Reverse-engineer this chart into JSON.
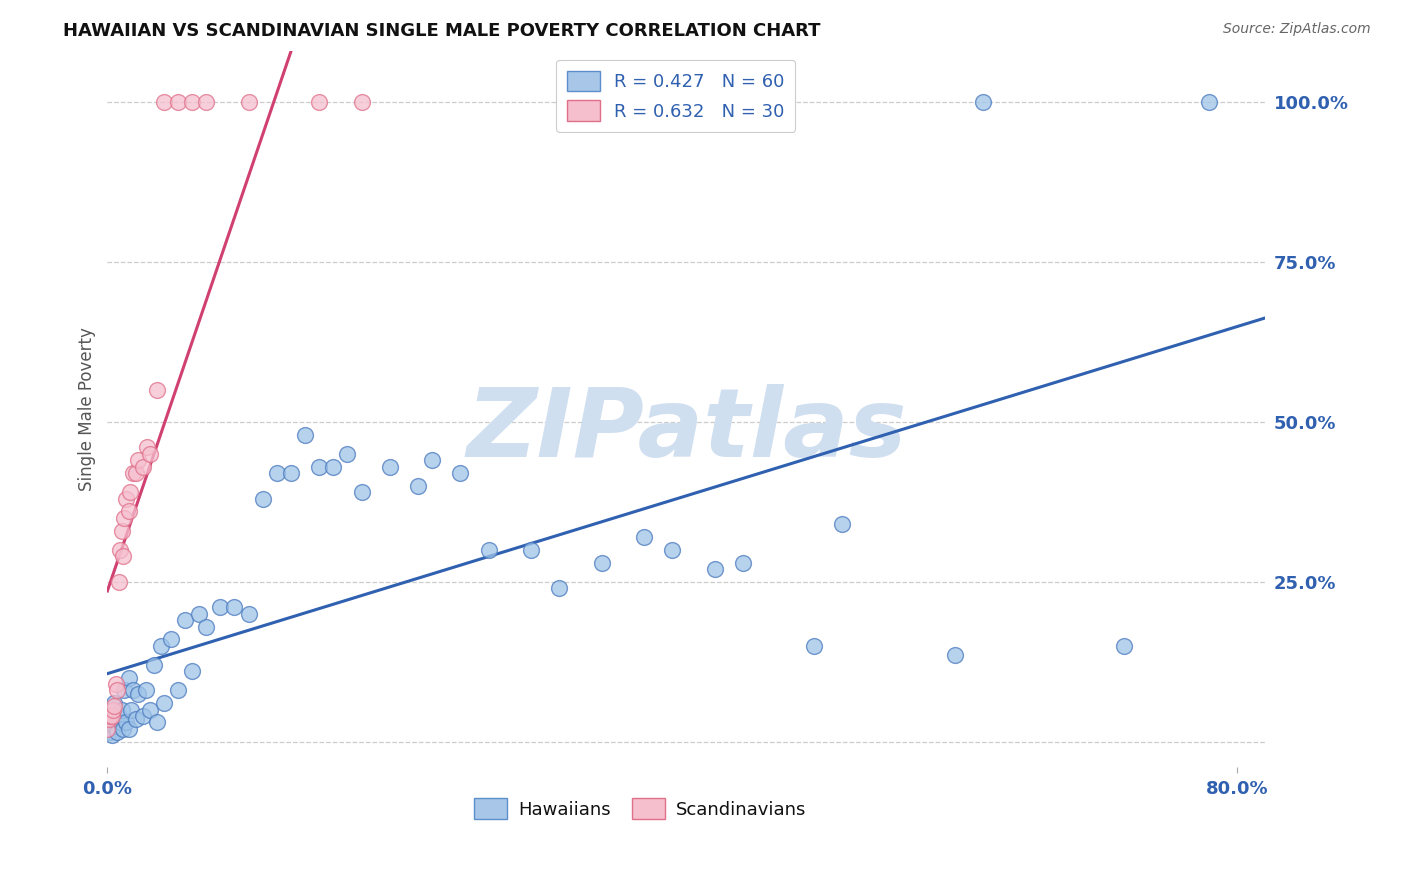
{
  "title": "HAWAIIAN VS SCANDINAVIAN SINGLE MALE POVERTY CORRELATION CHART",
  "source": "Source: ZipAtlas.com",
  "ylabel": "Single Male Poverty",
  "y_tick_right": [
    0.0,
    0.25,
    0.5,
    0.75,
    1.0
  ],
  "y_tick_labels_right": [
    "",
    "25.0%",
    "50.0%",
    "75.0%",
    "100.0%"
  ],
  "x_tick_vals": [
    0.0,
    0.8
  ],
  "x_tick_labels": [
    "0.0%",
    "80.0%"
  ],
  "legend_r_entries": [
    {
      "label": "R = 0.427   N = 60",
      "facecolor": "#a8c6e8",
      "edgecolor": "#5b8fcc"
    },
    {
      "label": "R = 0.632   N = 30",
      "facecolor": "#f5bfce",
      "edgecolor": "#e0708a"
    }
  ],
  "bottom_legend": [
    "Hawaiians",
    "Scandinavians"
  ],
  "blue_dot_face": "#9fc4e8",
  "blue_dot_edge": "#4a7abf",
  "pink_dot_face": "#f5bfce",
  "pink_dot_edge": "#e0708a",
  "blue_line_color": "#3060b0",
  "pink_line_color": "#d04070",
  "watermark_text": "ZIPatlas",
  "watermark_color": "#d0dff0",
  "background_color": "#ffffff",
  "grid_color": "#cccccc",
  "xlim": [
    0.0,
    0.82
  ],
  "ylim": [
    -0.04,
    1.08
  ],
  "hawaiians_x": [
    0.0,
    0.002,
    0.003,
    0.005,
    0.005,
    0.007,
    0.008,
    0.009,
    0.01,
    0.011,
    0.012,
    0.013,
    0.015,
    0.015,
    0.017,
    0.018,
    0.02,
    0.022,
    0.025,
    0.027,
    0.03,
    0.033,
    0.035,
    0.038,
    0.04,
    0.045,
    0.05,
    0.055,
    0.06,
    0.065,
    0.07,
    0.08,
    0.09,
    0.1,
    0.11,
    0.12,
    0.13,
    0.14,
    0.15,
    0.16,
    0.17,
    0.18,
    0.2,
    0.22,
    0.23,
    0.25,
    0.27,
    0.3,
    0.32,
    0.35,
    0.38,
    0.4,
    0.43,
    0.45,
    0.5,
    0.52,
    0.6,
    0.62,
    0.72,
    0.78
  ],
  "hawaiians_y": [
    0.02,
    0.015,
    0.01,
    0.025,
    0.06,
    0.015,
    0.04,
    0.03,
    0.05,
    0.02,
    0.08,
    0.03,
    0.02,
    0.1,
    0.05,
    0.08,
    0.035,
    0.075,
    0.04,
    0.08,
    0.05,
    0.12,
    0.03,
    0.15,
    0.06,
    0.16,
    0.08,
    0.19,
    0.11,
    0.2,
    0.18,
    0.21,
    0.21,
    0.2,
    0.38,
    0.42,
    0.42,
    0.48,
    0.43,
    0.43,
    0.45,
    0.39,
    0.43,
    0.4,
    0.44,
    0.42,
    0.3,
    0.3,
    0.24,
    0.28,
    0.32,
    0.3,
    0.27,
    0.28,
    0.15,
    0.34,
    0.135,
    1.0,
    0.15,
    1.0
  ],
  "scandinavians_x": [
    0.0,
    0.001,
    0.002,
    0.003,
    0.004,
    0.005,
    0.006,
    0.007,
    0.008,
    0.009,
    0.01,
    0.011,
    0.012,
    0.013,
    0.015,
    0.016,
    0.018,
    0.02,
    0.022,
    0.025,
    0.028,
    0.03,
    0.035,
    0.04,
    0.05,
    0.06,
    0.07,
    0.1,
    0.15,
    0.18
  ],
  "scandinavians_y": [
    0.02,
    0.035,
    0.04,
    0.04,
    0.05,
    0.055,
    0.09,
    0.08,
    0.25,
    0.3,
    0.33,
    0.29,
    0.35,
    0.38,
    0.36,
    0.39,
    0.42,
    0.42,
    0.44,
    0.43,
    0.46,
    0.45,
    0.55,
    1.0,
    1.0,
    1.0,
    1.0,
    1.0,
    1.0,
    1.0
  ]
}
